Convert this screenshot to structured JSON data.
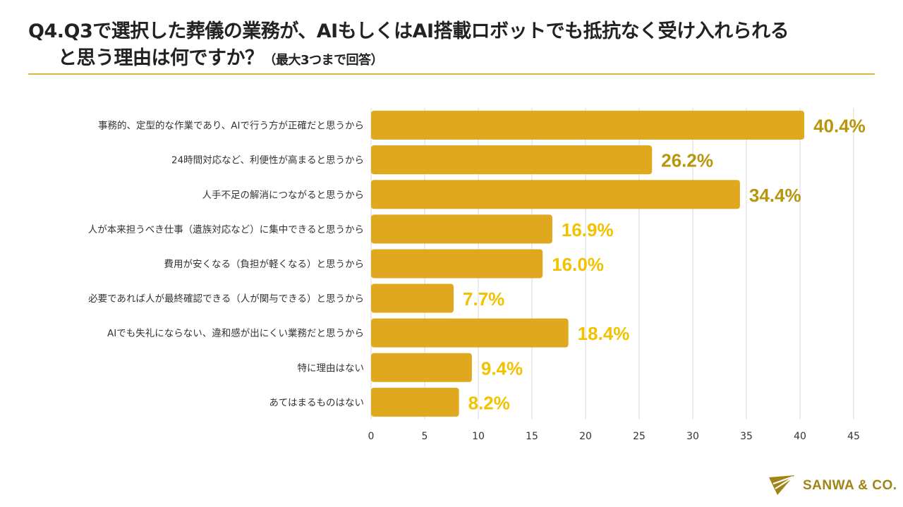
{
  "title": {
    "line1": "Q4.Q3で選択した葬儀の業務が、AIもしくはAI搭載ロボットでも抵抗なく受け入れられる",
    "line2": "と思う理由は何ですか？",
    "note": "（最大3つまで回答）"
  },
  "brand": {
    "name": "SANWA & CO."
  },
  "colors": {
    "bar": "#e0a81e",
    "label_top": "#b8960c",
    "label_other": "#f2c200",
    "grid": "#d8d8d8",
    "rule": "#d9b83a"
  },
  "chart_data": {
    "type": "bar",
    "orientation": "horizontal",
    "categories": [
      "事務的、定型的な作業であり、AIで行う方が正確だと思うから",
      "24時間対応など、利便性が高まると思うから",
      "人手不足の解消につながると思うから",
      "人が本来担うべき仕事（遺族対応など）に集中できると思うから",
      "費用が安くなる（負担が軽くなる）と思うから",
      "必要であれば人が最終確認できる（人が関与できる）と思うから",
      "AIでも失礼にならない、違和感が出にくい業務だと思うから",
      "特に理由はない",
      "あてはまるものはない"
    ],
    "values": [
      40.4,
      26.2,
      34.4,
      16.9,
      16.0,
      7.7,
      18.4,
      9.4,
      8.2
    ],
    "data_labels": [
      "40.4%",
      "26.2%",
      "34.4%",
      "16.9%",
      "16.0%",
      "7.7%",
      "18.4%",
      "9.4%",
      "8.2%"
    ],
    "xlim": [
      0,
      45
    ],
    "xticks": [
      "0",
      "5",
      "10",
      "15",
      "20",
      "25",
      "30",
      "35",
      "40",
      "45"
    ],
    "grid": true
  }
}
